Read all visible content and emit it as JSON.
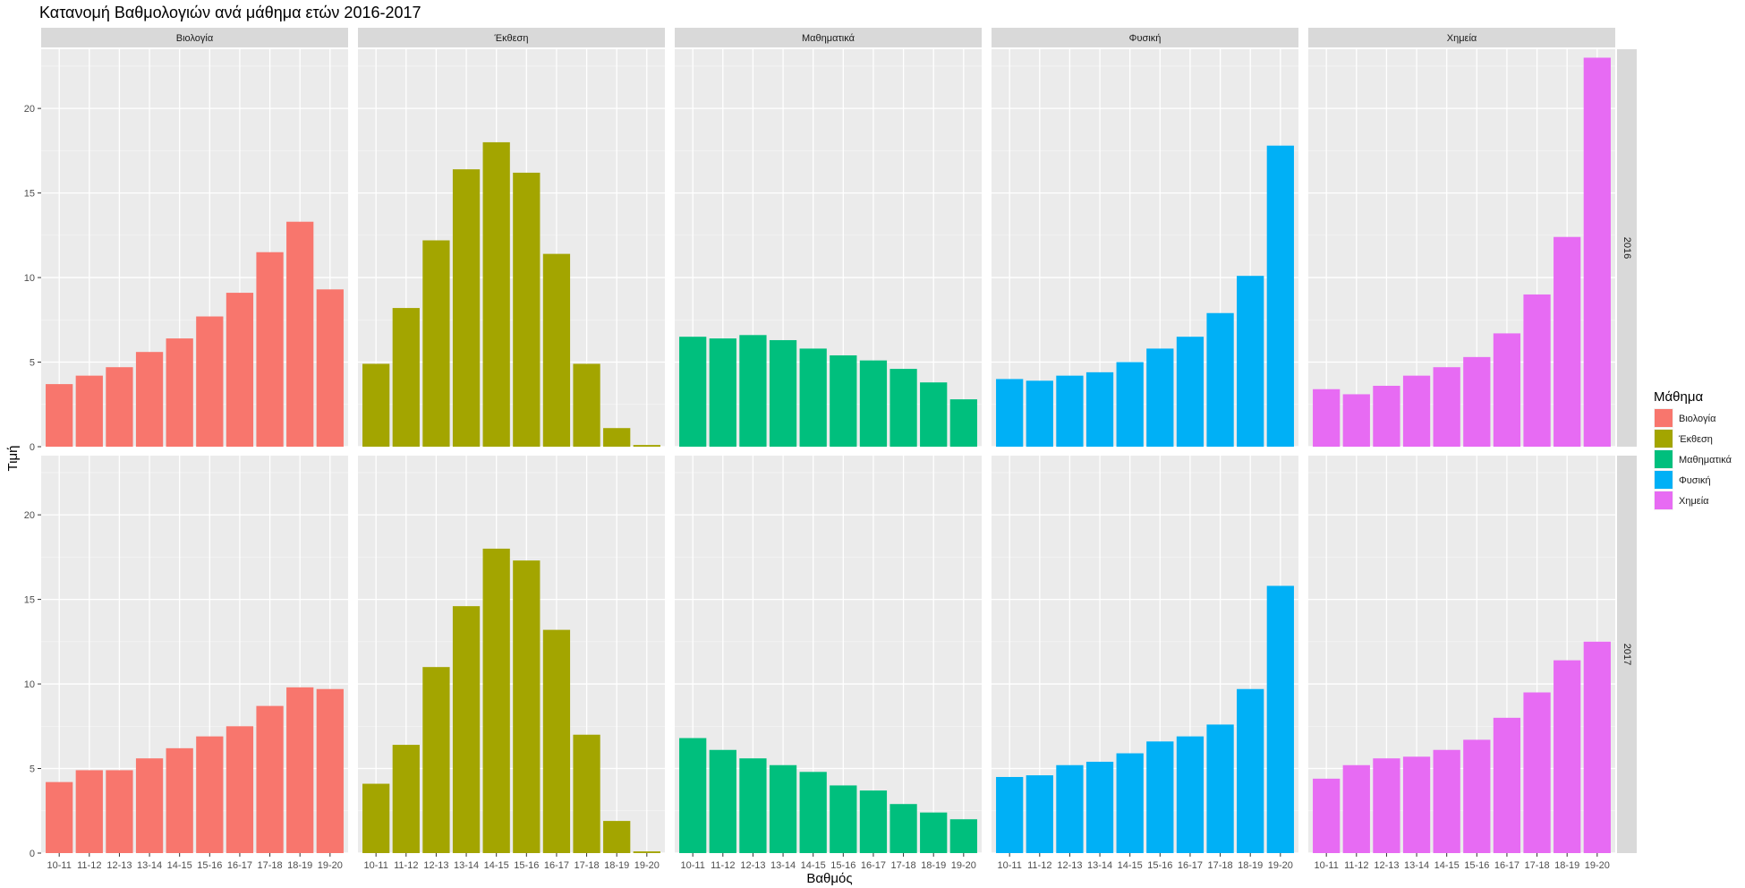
{
  "chart_data": {
    "type": "bar",
    "title": "Κατανομή  Βαθμολογιών ανά μάθημα ετών 2016-2017",
    "xlabel": "Βαθμός",
    "ylabel": "Τιμή",
    "ylim": [
      0,
      23.5
    ],
    "y_ticks": [
      "0",
      "5",
      "10",
      "15",
      "20"
    ],
    "y_tick_values": [
      0,
      5,
      10,
      15,
      20
    ],
    "grid": true,
    "legend_title": "Μάθημα",
    "legend_position": "right",
    "categories": [
      "10-11",
      "11-12",
      "12-13",
      "13-14",
      "14-15",
      "15-16",
      "16-17",
      "17-18",
      "18-19",
      "19-20"
    ],
    "subjects": [
      {
        "name": "Βιολογία",
        "color": "#F8766D"
      },
      {
        "name": "Έκθεση",
        "color": "#A3A500"
      },
      {
        "name": "Μαθηματικά",
        "color": "#00BF7D"
      },
      {
        "name": "Φυσική",
        "color": "#00B0F6"
      },
      {
        "name": "Χημεία",
        "color": "#E76BF3"
      }
    ],
    "years": [
      "2016",
      "2017"
    ],
    "series": [
      {
        "name": "Βιολογία",
        "year": "2016",
        "values": [
          3.7,
          4.2,
          4.7,
          5.6,
          6.4,
          7.7,
          9.1,
          11.5,
          13.3,
          9.3
        ]
      },
      {
        "name": "Έκθεση",
        "year": "2016",
        "values": [
          4.9,
          8.2,
          12.2,
          16.4,
          18.0,
          16.2,
          11.4,
          4.9,
          1.1,
          0.1
        ]
      },
      {
        "name": "Μαθηματικά",
        "year": "2016",
        "values": [
          6.5,
          6.4,
          6.6,
          6.3,
          5.8,
          5.4,
          5.1,
          4.6,
          3.8,
          2.8
        ]
      },
      {
        "name": "Φυσική",
        "year": "2016",
        "values": [
          4.0,
          3.9,
          4.2,
          4.4,
          5.0,
          5.8,
          6.5,
          7.9,
          10.1,
          17.8
        ]
      },
      {
        "name": "Χημεία",
        "year": "2016",
        "values": [
          3.4,
          3.1,
          3.6,
          4.2,
          4.7,
          5.3,
          6.7,
          9.0,
          12.4,
          23.0
        ]
      },
      {
        "name": "Βιολογία",
        "year": "2017",
        "values": [
          4.2,
          4.9,
          4.9,
          5.6,
          6.2,
          6.9,
          7.5,
          8.7,
          9.8,
          9.7
        ]
      },
      {
        "name": "Έκθεση",
        "year": "2017",
        "values": [
          4.1,
          6.4,
          11.0,
          14.6,
          18.0,
          17.3,
          13.2,
          7.0,
          1.9,
          0.1
        ]
      },
      {
        "name": "Μαθηματικά",
        "year": "2017",
        "values": [
          6.8,
          6.1,
          5.6,
          5.2,
          4.8,
          4.0,
          3.7,
          2.9,
          2.4,
          2.0
        ]
      },
      {
        "name": "Φυσική",
        "year": "2017",
        "values": [
          4.5,
          4.6,
          5.2,
          5.4,
          5.9,
          6.6,
          6.9,
          7.6,
          9.7,
          15.8
        ]
      },
      {
        "name": "Χημεία",
        "year": "2017",
        "values": [
          4.4,
          5.2,
          5.6,
          5.7,
          6.1,
          6.7,
          8.0,
          9.5,
          11.4,
          12.5
        ]
      }
    ]
  }
}
